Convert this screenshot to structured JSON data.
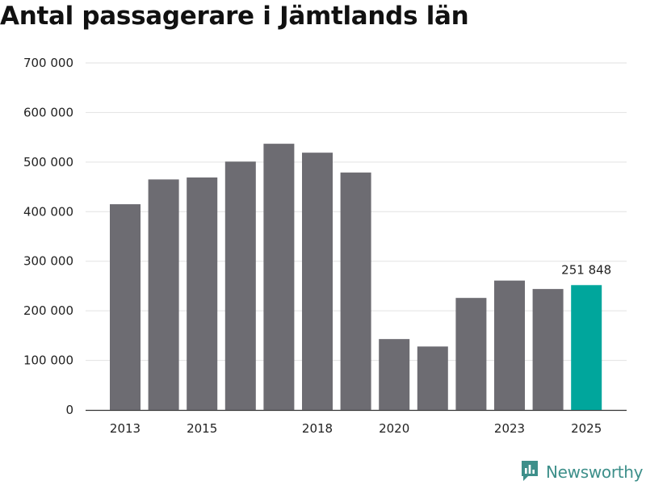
{
  "chart_data": {
    "type": "bar",
    "title": "Antal passagerare i Jämtlands län",
    "xlabel": "",
    "ylabel": "",
    "categories": [
      "2013",
      "2014",
      "2015",
      "2016",
      "2017",
      "2018",
      "2019",
      "2020",
      "2021",
      "2022",
      "2023",
      "2024",
      "2025"
    ],
    "values": [
      415000,
      465000,
      469000,
      501000,
      537000,
      519000,
      479000,
      143000,
      128000,
      226000,
      261000,
      244000,
      251848
    ],
    "x_tick_labels": [
      "2013",
      "",
      "2015",
      "",
      "",
      "2018",
      "",
      "2020",
      "",
      "",
      "2023",
      "",
      "2025"
    ],
    "ylim": [
      0,
      700000
    ],
    "y_ticks": [
      0,
      100000,
      200000,
      300000,
      400000,
      500000,
      600000,
      700000
    ],
    "y_tick_labels": [
      "0",
      "100 000",
      "200 000",
      "300 000",
      "400 000",
      "500 000",
      "600 000",
      "700 000"
    ],
    "grid": true,
    "bar_color": "#6d6c72",
    "highlight_color": "#00a69c",
    "highlight_index": 12,
    "data_labels": [
      {
        "index": 12,
        "text": "251 848"
      }
    ]
  },
  "brand": {
    "name": "Newsworthy",
    "icon": "newsworthy-logo-icon",
    "color": "#3d8f8a"
  }
}
